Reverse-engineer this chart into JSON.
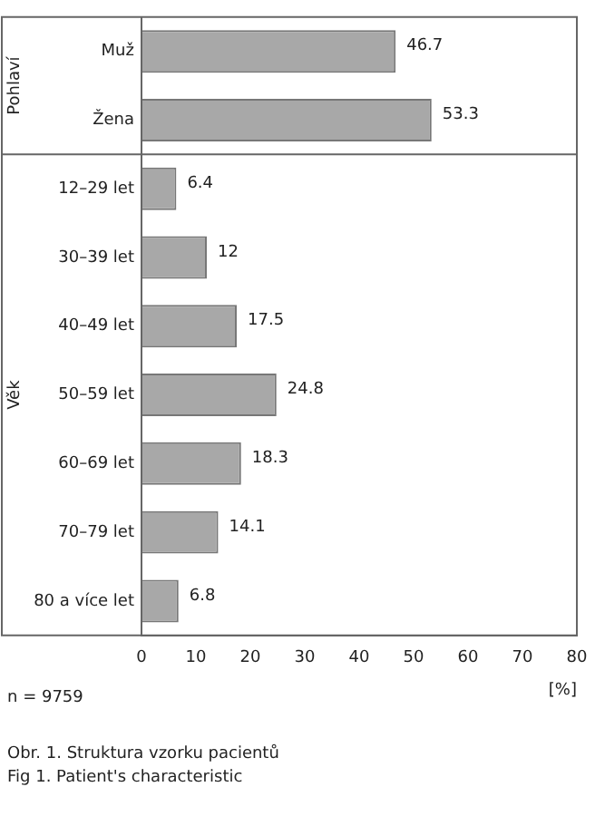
{
  "chart_data": {
    "type": "bar",
    "orientation": "horizontal",
    "xlabel": "[%]",
    "categories": [
      "Muž",
      "Žena",
      "12–29 let",
      "30–39 let",
      "40–49 let",
      "50–59 let",
      "60–69 let",
      "70–79 let",
      "80 a více let"
    ],
    "values": [
      46.7,
      53.3,
      6.4,
      12,
      17.5,
      24.8,
      18.3,
      14.1,
      6.8
    ],
    "color": "#a8a8a8",
    "xlim": [
      0,
      80
    ],
    "xticks": [
      0,
      10,
      20,
      30,
      40,
      50,
      60,
      70,
      80
    ],
    "grid": false,
    "legend": false,
    "data_labels": true,
    "annotations": [
      "Pohlaví",
      "Věk",
      "n = 9759",
      "Obr. 1. Struktura vzorku pacientů",
      "Fig 1. Patient's characteristic"
    ]
  }
}
